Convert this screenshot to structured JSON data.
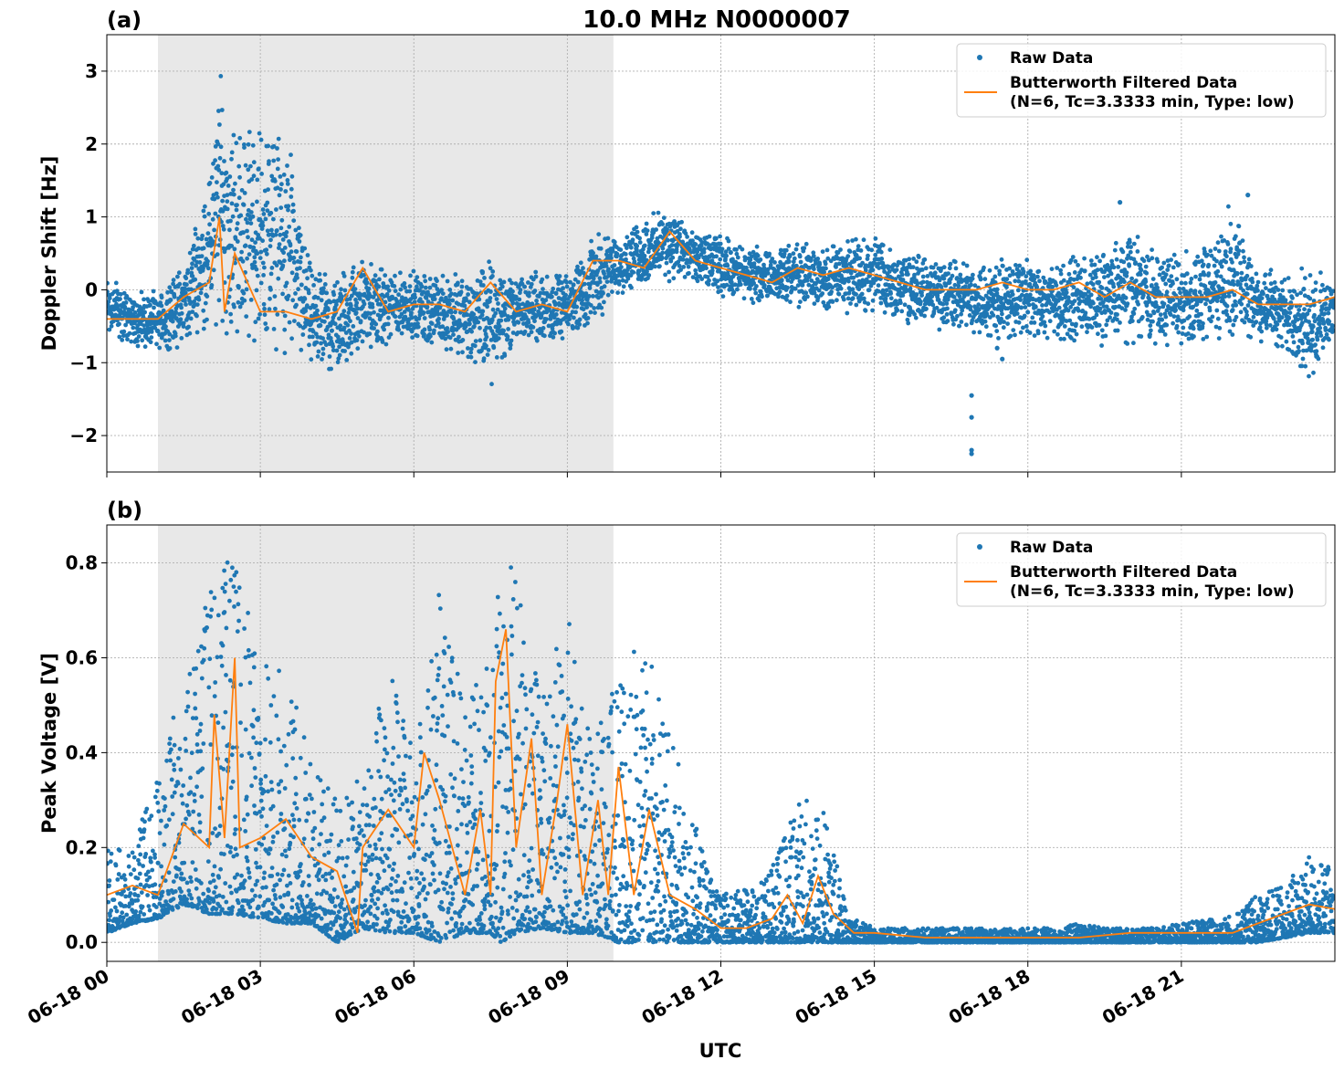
{
  "figure": {
    "title": "10.0 MHz N0000007",
    "xlabel": "UTC",
    "x_tick_labels": [
      "06-18 00",
      "06-18 03",
      "06-18 06",
      "06-18 09",
      "06-18 12",
      "06-18 15",
      "06-18 18",
      "06-18 21"
    ],
    "colors": {
      "raw": "#1f77b4",
      "filtered": "#ff7f0e",
      "shade": "#e8e8e8",
      "grid": "#b0b0b0"
    }
  },
  "chart_data": [
    {
      "panel_label": "(a)",
      "type": "scatter",
      "ylabel": "Doppler Shift [Hz]",
      "xlim_hours": [
        0,
        24
      ],
      "ylim": [
        -2.5,
        3.5
      ],
      "y_ticks": [
        3,
        2,
        1,
        0,
        -1,
        -2
      ],
      "y_tick_labels": [
        "3",
        "2",
        "1",
        "0",
        "−1",
        "−2"
      ],
      "shaded_interval_hours": [
        1.0,
        9.9
      ],
      "grid": true,
      "legend_position": "top-right",
      "legend": [
        "Raw Data",
        "Butterworth Filtered Data",
        "(N=6, Tc=3.3333 min, Type: low)"
      ],
      "series": [
        {
          "name": "Raw Data",
          "style": "points",
          "x_hours": [
            0,
            0.5,
            1,
            1.5,
            2,
            2.2,
            2.5,
            3,
            3.5,
            4,
            4.5,
            5,
            5.5,
            6,
            6.5,
            7,
            7.5,
            8,
            8.5,
            9,
            9.5,
            10,
            10.5,
            11,
            11.5,
            12,
            12.5,
            13,
            13.5,
            14,
            14.5,
            15,
            15.5,
            16,
            16.5,
            17,
            17.5,
            18,
            18.5,
            19,
            19.5,
            20,
            20.5,
            21,
            21.5,
            22,
            22.5,
            23,
            23.5,
            24
          ],
          "y_upper": [
            0.3,
            0.0,
            0.0,
            0.4,
            1.7,
            3.2,
            2.4,
            2.4,
            2.3,
            0.3,
            0.3,
            0.5,
            0.3,
            0.3,
            0.3,
            0.3,
            0.5,
            0.3,
            0.3,
            0.2,
            0.8,
            0.8,
            1.0,
            1.2,
            0.8,
            0.8,
            0.6,
            0.6,
            0.7,
            0.6,
            0.8,
            0.8,
            0.6,
            0.5,
            0.5,
            0.4,
            0.5,
            0.5,
            0.4,
            0.5,
            0.6,
            0.9,
            0.6,
            0.6,
            0.6,
            1.3,
            0.4,
            0.3,
            0.3,
            0.2
          ],
          "y_lower": [
            -0.7,
            -0.8,
            -0.9,
            -0.8,
            -0.6,
            -0.8,
            -0.8,
            -0.8,
            -1.0,
            -1.1,
            -1.2,
            -0.9,
            -0.8,
            -0.7,
            -0.9,
            -1.0,
            -1.4,
            -0.8,
            -0.8,
            -0.7,
            -0.5,
            -0.1,
            0.0,
            0.1,
            0.0,
            -0.1,
            -0.2,
            -0.2,
            -0.3,
            -0.3,
            -0.4,
            -0.4,
            -0.5,
            -0.6,
            -0.6,
            -0.7,
            -0.7,
            -0.7,
            -0.7,
            -0.8,
            -0.8,
            -0.8,
            -0.8,
            -0.8,
            -0.8,
            -0.8,
            -0.8,
            -0.9,
            -1.3,
            -0.8
          ],
          "outliers": [
            [
              16.9,
              -1.45
            ],
            [
              16.9,
              -1.75
            ],
            [
              16.9,
              -2.2
            ],
            [
              16.9,
              -2.25
            ],
            [
              17.4,
              -0.8
            ],
            [
              17.5,
              -0.95
            ],
            [
              22.3,
              1.3
            ],
            [
              19.8,
              1.2
            ]
          ]
        },
        {
          "name": "Butterworth Filtered Data",
          "style": "line",
          "x_hours": [
            0,
            0.5,
            1,
            1.5,
            2,
            2.2,
            2.3,
            2.5,
            3,
            3.5,
            4,
            4.5,
            5,
            5.5,
            6,
            6.5,
            7,
            7.5,
            8,
            8.5,
            9,
            9.5,
            10,
            10.5,
            11,
            11.5,
            12,
            12.5,
            13,
            13.5,
            14,
            14.5,
            15,
            15.5,
            16,
            16.5,
            17,
            17.5,
            18,
            18.5,
            19,
            19.5,
            20,
            20.5,
            21,
            21.5,
            22,
            22.5,
            23,
            23.5,
            24
          ],
          "y": [
            -0.4,
            -0.4,
            -0.4,
            -0.1,
            0.1,
            1.0,
            -0.3,
            0.5,
            -0.3,
            -0.3,
            -0.4,
            -0.3,
            0.3,
            -0.3,
            -0.2,
            -0.2,
            -0.3,
            0.1,
            -0.3,
            -0.2,
            -0.3,
            0.4,
            0.4,
            0.3,
            0.8,
            0.4,
            0.3,
            0.2,
            0.1,
            0.3,
            0.2,
            0.3,
            0.2,
            0.1,
            0.0,
            0.0,
            0.0,
            0.1,
            0.0,
            0.0,
            0.1,
            -0.1,
            0.1,
            -0.1,
            -0.1,
            -0.1,
            0.0,
            -0.2,
            -0.2,
            -0.2,
            -0.1
          ]
        }
      ]
    },
    {
      "panel_label": "(b)",
      "type": "scatter",
      "ylabel": "Peak Voltage [V]",
      "xlim_hours": [
        0,
        24
      ],
      "ylim": [
        -0.04,
        0.88
      ],
      "y_ticks": [
        0.0,
        0.2,
        0.4,
        0.6,
        0.8
      ],
      "y_tick_labels": [
        "0.0",
        "0.2",
        "0.4",
        "0.6",
        "0.8"
      ],
      "shaded_interval_hours": [
        1.0,
        9.9
      ],
      "grid": true,
      "legend_position": "top-right",
      "legend": [
        "Raw Data",
        "Butterworth Filtered Data",
        "(N=6, Tc=3.3333 min, Type: low)"
      ],
      "series": [
        {
          "name": "Raw Data",
          "style": "points",
          "x_hours": [
            0,
            0.5,
            1,
            1.5,
            2,
            2.5,
            3,
            3.5,
            4,
            4.5,
            5,
            5.5,
            6,
            6.5,
            7,
            7.5,
            7.7,
            8,
            8.5,
            9,
            9.5,
            10,
            10.5,
            11,
            11.5,
            12,
            12.5,
            13,
            13.5,
            14,
            14.5,
            15,
            15.5,
            16,
            16.5,
            17,
            17.5,
            18,
            18.5,
            19,
            19.5,
            20,
            20.5,
            21,
            21.5,
            22,
            22.5,
            23,
            23.5,
            24
          ],
          "y_upper": [
            0.2,
            0.2,
            0.38,
            0.55,
            0.78,
            0.82,
            0.6,
            0.58,
            0.4,
            0.3,
            0.35,
            0.6,
            0.4,
            0.74,
            0.5,
            0.6,
            0.84,
            0.8,
            0.5,
            0.73,
            0.4,
            0.67,
            0.67,
            0.45,
            0.25,
            0.1,
            0.12,
            0.16,
            0.31,
            0.3,
            0.06,
            0.03,
            0.03,
            0.03,
            0.03,
            0.03,
            0.03,
            0.03,
            0.03,
            0.04,
            0.03,
            0.03,
            0.03,
            0.04,
            0.05,
            0.06,
            0.1,
            0.12,
            0.18,
            0.16
          ],
          "y_lower": [
            0.02,
            0.04,
            0.05,
            0.08,
            0.06,
            0.06,
            0.05,
            0.04,
            0.04,
            0.0,
            0.03,
            0.02,
            0.02,
            0.0,
            0.02,
            0.02,
            0.0,
            0.02,
            0.03,
            0.02,
            0.02,
            0.0,
            0.0,
            0.0,
            0.0,
            0.0,
            0.0,
            0.0,
            0.0,
            0.0,
            0.0,
            0.0,
            0.0,
            0.0,
            0.0,
            0.0,
            0.0,
            0.0,
            0.0,
            0.0,
            0.0,
            0.0,
            0.0,
            0.0,
            0.0,
            0.0,
            0.0,
            0.01,
            0.02,
            0.02
          ]
        },
        {
          "name": "Butterworth Filtered Data",
          "style": "line",
          "x_hours": [
            0,
            0.5,
            1,
            1.5,
            2,
            2.1,
            2.3,
            2.5,
            2.6,
            3,
            3.5,
            4,
            4.5,
            4.9,
            5,
            5.5,
            6,
            6.2,
            6.5,
            7,
            7.3,
            7.5,
            7.6,
            7.8,
            8,
            8.3,
            8.5,
            8.8,
            9,
            9.3,
            9.6,
            9.8,
            10,
            10.3,
            10.6,
            11,
            11.5,
            12,
            12.5,
            13,
            13.3,
            13.6,
            13.9,
            14.2,
            14.6,
            15,
            16,
            17,
            18,
            19,
            20,
            21,
            22,
            22.5,
            23,
            23.5,
            24
          ],
          "y": [
            0.1,
            0.12,
            0.1,
            0.25,
            0.2,
            0.48,
            0.22,
            0.6,
            0.2,
            0.22,
            0.26,
            0.18,
            0.15,
            0.02,
            0.2,
            0.28,
            0.2,
            0.4,
            0.3,
            0.1,
            0.28,
            0.1,
            0.55,
            0.66,
            0.2,
            0.43,
            0.1,
            0.3,
            0.46,
            0.1,
            0.3,
            0.1,
            0.37,
            0.1,
            0.28,
            0.1,
            0.07,
            0.03,
            0.03,
            0.05,
            0.1,
            0.04,
            0.14,
            0.06,
            0.02,
            0.02,
            0.01,
            0.01,
            0.01,
            0.01,
            0.02,
            0.02,
            0.02,
            0.04,
            0.06,
            0.08,
            0.07
          ]
        }
      ]
    }
  ]
}
